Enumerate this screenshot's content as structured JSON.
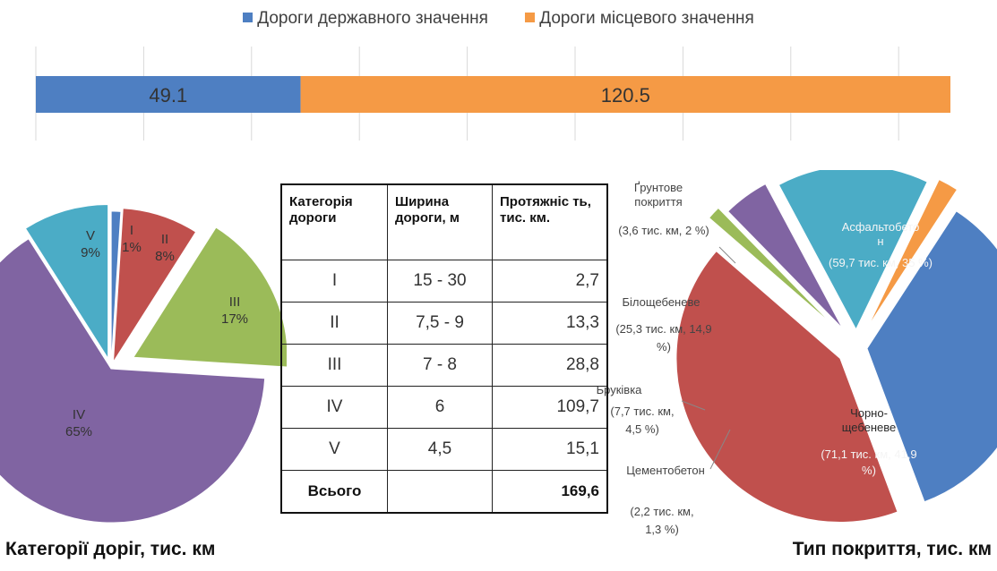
{
  "stacked_bar": {
    "legend": [
      {
        "label": "Дороги державного значення",
        "color": "#4e7fc2"
      },
      {
        "label": "Дороги місцевого значення",
        "color": "#f59a45"
      }
    ]
  },
  "pie_categories": {
    "title": "Категорії доріг, тис. км",
    "colors": [
      "#4e7fc2",
      "#c0504d",
      "#9bbb59",
      "#8064a2",
      "#4bacc6"
    ]
  },
  "pie_cover": {
    "title": "Тип покриття, тис. км",
    "colors": [
      "#4e7fc2",
      "#c0504d",
      "#9bbb59",
      "#8064a2",
      "#4bacc6",
      "#f59a45"
    ]
  },
  "table": {
    "headers": [
      "Категорія дороги",
      "Ширина дороги, м",
      "Протяжніс ть, тис. км."
    ],
    "rows": [
      [
        "І",
        "15 - 30",
        "2,7"
      ],
      [
        "ІІ",
        "7,5 - 9",
        "13,3"
      ],
      [
        "ІІІ",
        "7 - 8",
        "28,8"
      ],
      [
        "ІV",
        "6",
        "109,7"
      ],
      [
        "V",
        "4,5",
        "15,1"
      ]
    ],
    "total": [
      "Всього",
      "",
      "169,6"
    ]
  },
  "chart_data": [
    {
      "type": "bar",
      "orientation": "horizontal",
      "stacked": true,
      "series": [
        {
          "name": "Дороги державного значення",
          "values": [
            49.1
          ]
        },
        {
          "name": "Дороги місцевого значення",
          "values": [
            120.5
          ]
        }
      ],
      "data_labels": [
        "49.1",
        "120.5"
      ],
      "xlim": [
        0,
        200
      ],
      "grid": true,
      "legend": "top"
    },
    {
      "type": "pie",
      "title": "Категорії доріг, тис. км",
      "categories": [
        "I",
        "II",
        "III",
        "IV",
        "V"
      ],
      "values": [
        1,
        8,
        17,
        65,
        9
      ],
      "data_labels": [
        "1%",
        "8%",
        "17%",
        "65%",
        "9%"
      ],
      "exploded": true
    },
    {
      "type": "pie",
      "title": "Тип покриття, тис. км",
      "categories": [
        "Асфальтобето н",
        "Чорно- щебеневе",
        "Цементобетон",
        "Бруківка",
        "Білощебеневе",
        "Ґрунтове покриття"
      ],
      "values": [
        35,
        41.9,
        1.3,
        4.5,
        14.9,
        2
      ],
      "data_labels": [
        "(59,7 тис. км, 35 %)",
        "(71,1 тис. км, 41,9 %)",
        "(2,2 тис. км, 1,3 %)",
        "(7,7 тис. км, 4,5 %)",
        "(25,3 тис. км, 14,9 %)",
        "(3,6 тис. км, 2 %)"
      ],
      "exploded": true
    }
  ]
}
